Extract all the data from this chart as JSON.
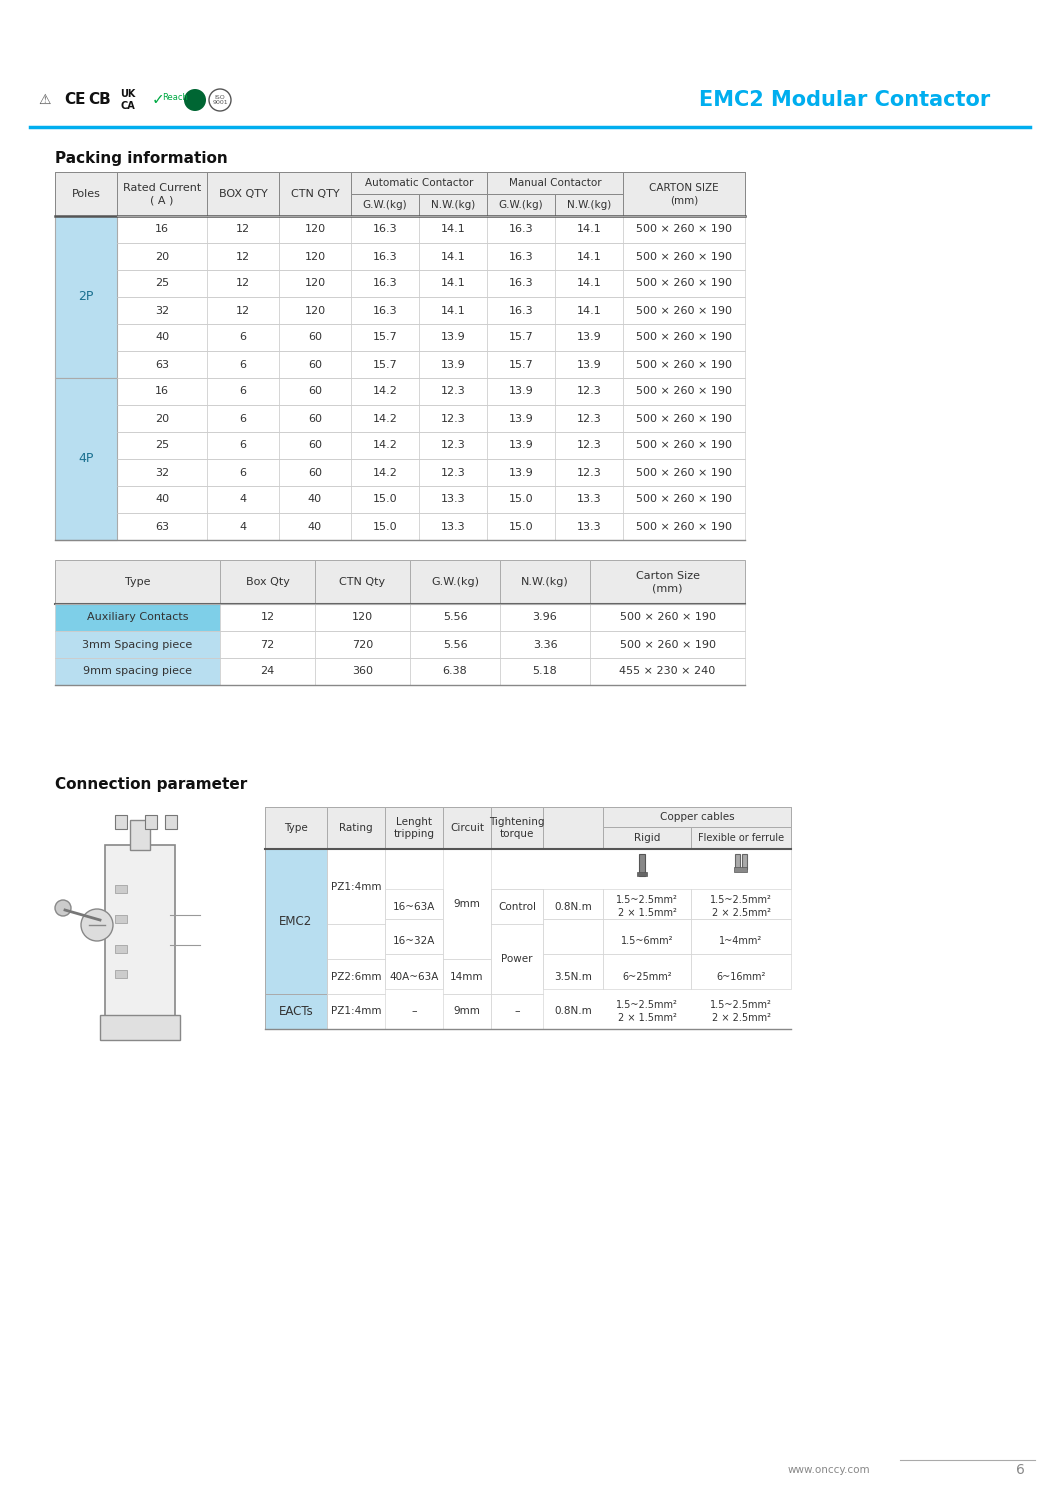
{
  "title": "EMC2 Modular Contactor",
  "title_color": "#00AEEF",
  "section1_title": "Packing information",
  "section2_title": "Connection parameter",
  "packing_2p_rows": [
    [
      "16",
      "12",
      "120",
      "16.3",
      "14.1",
      "16.3",
      "14.1",
      "500 × 260 × 190"
    ],
    [
      "20",
      "12",
      "120",
      "16.3",
      "14.1",
      "16.3",
      "14.1",
      "500 × 260 × 190"
    ],
    [
      "25",
      "12",
      "120",
      "16.3",
      "14.1",
      "16.3",
      "14.1",
      "500 × 260 × 190"
    ],
    [
      "32",
      "12",
      "120",
      "16.3",
      "14.1",
      "16.3",
      "14.1",
      "500 × 260 × 190"
    ],
    [
      "40",
      "6",
      "60",
      "15.7",
      "13.9",
      "15.7",
      "13.9",
      "500 × 260 × 190"
    ],
    [
      "63",
      "6",
      "60",
      "15.7",
      "13.9",
      "15.7",
      "13.9",
      "500 × 260 × 190"
    ]
  ],
  "packing_4p_rows": [
    [
      "16",
      "6",
      "60",
      "14.2",
      "12.3",
      "13.9",
      "12.3",
      "500 × 260 × 190"
    ],
    [
      "20",
      "6",
      "60",
      "14.2",
      "12.3",
      "13.9",
      "12.3",
      "500 × 260 × 190"
    ],
    [
      "25",
      "6",
      "60",
      "14.2",
      "12.3",
      "13.9",
      "12.3",
      "500 × 260 × 190"
    ],
    [
      "32",
      "6",
      "60",
      "14.2",
      "12.3",
      "13.9",
      "12.3",
      "500 × 260 × 190"
    ],
    [
      "40",
      "4",
      "40",
      "15.0",
      "13.3",
      "15.0",
      "13.3",
      "500 × 260 × 190"
    ],
    [
      "63",
      "4",
      "40",
      "15.0",
      "13.3",
      "15.0",
      "13.3",
      "500 × 260 × 190"
    ]
  ],
  "acc_rows": [
    [
      "Auxiliary Contacts",
      "12",
      "120",
      "5.56",
      "3.96",
      "500 × 260 × 190"
    ],
    [
      "3mm Spacing piece",
      "72",
      "720",
      "5.56",
      "3.36",
      "500 × 260 × 190"
    ],
    [
      "9mm spacing piece",
      "24",
      "360",
      "6.38",
      "5.18",
      "455 × 230 × 240"
    ]
  ],
  "light_blue": "#B8DEF0",
  "mid_blue": "#7ECFE8",
  "header_bg": "#EBEBEB",
  "white": "#FFFFFF",
  "border_dark": "#888888",
  "border_light": "#CCCCCC",
  "text_dark": "#333333",
  "text_light": "#666666",
  "blue_line": "#00AEEF"
}
